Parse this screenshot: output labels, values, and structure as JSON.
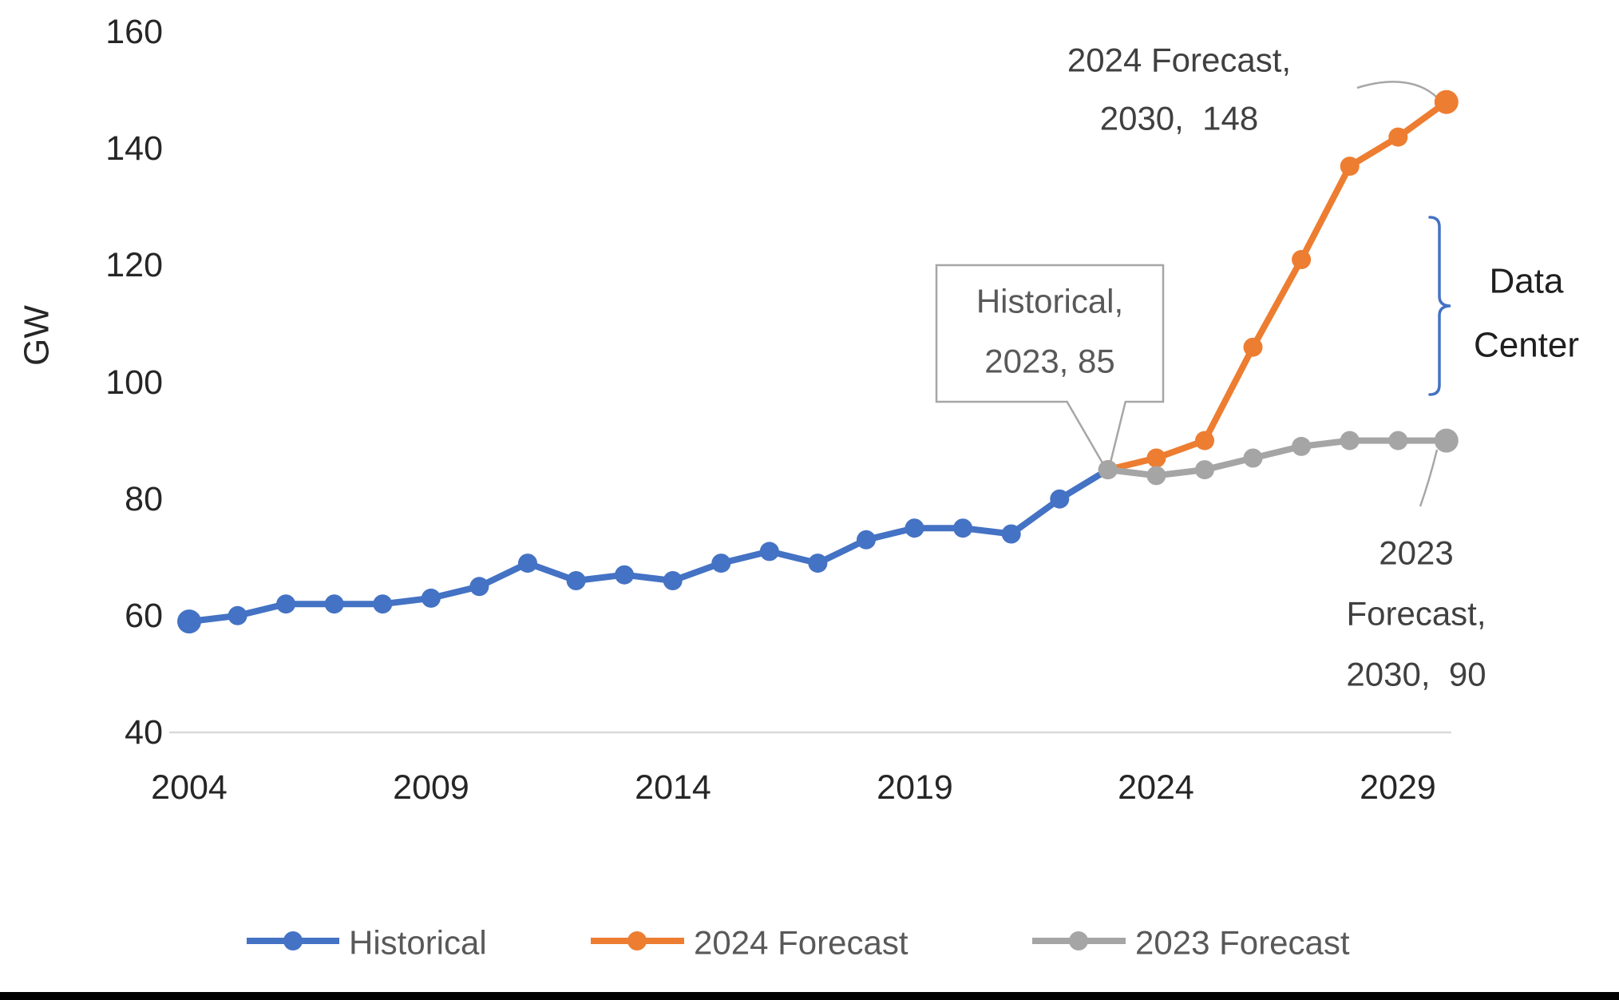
{
  "chart_data": {
    "type": "line",
    "title": "",
    "xlabel": "",
    "ylabel": "GW",
    "ylim": [
      40,
      160
    ],
    "xlim": [
      2004,
      2030
    ],
    "grid": false,
    "legend_position": "bottom",
    "y_ticks": [
      "160",
      "140",
      "120",
      "100",
      "80",
      "60",
      "40"
    ],
    "x_ticks": [
      "2004",
      "2009",
      "2014",
      "2019",
      "2024",
      "2029"
    ],
    "series": [
      {
        "name": "Historical",
        "color": "#4472C4",
        "years": [
          2004,
          2005,
          2006,
          2007,
          2008,
          2009,
          2010,
          2011,
          2012,
          2013,
          2014,
          2015,
          2016,
          2017,
          2018,
          2019,
          2020,
          2021,
          2022,
          2023
        ],
        "values": [
          59,
          60,
          62,
          62,
          62,
          63,
          65,
          69,
          66,
          67,
          66,
          69,
          71,
          69,
          73,
          75,
          75,
          74,
          80,
          85
        ]
      },
      {
        "name": "2024 Forecast",
        "color": "#ED7D31",
        "years": [
          2023,
          2024,
          2025,
          2026,
          2027,
          2028,
          2029,
          2030
        ],
        "values": [
          85,
          87,
          90,
          106,
          121,
          137,
          142,
          148
        ]
      },
      {
        "name": "2023 Forecast",
        "color": "#A5A5A5",
        "years": [
          2023,
          2024,
          2025,
          2026,
          2027,
          2028,
          2029,
          2030
        ],
        "values": [
          85,
          84,
          85,
          87,
          89,
          90,
          90,
          90
        ]
      }
    ],
    "annotations": {
      "historical_callout": {
        "line1": "Historical,",
        "line2": "2023, 85"
      },
      "forecast2024_label": {
        "line1": "2024 Forecast,",
        "line2": "2030,  148"
      },
      "forecast2023_label": {
        "line1": "2023",
        "line2": "Forecast,",
        "line3": "2030,  90"
      },
      "bracket_label": {
        "line1": "Data",
        "line2": "Center"
      }
    }
  },
  "legend": {
    "items": [
      {
        "label": "Historical",
        "color": "#4472C4"
      },
      {
        "label": "2024 Forecast",
        "color": "#ED7D31"
      },
      {
        "label": "2023 Forecast",
        "color": "#A5A5A5"
      }
    ]
  },
  "colors": {
    "historical": "#4472C4",
    "forecast_2024": "#ED7D31",
    "forecast_2023": "#A5A5A5",
    "axis_line": "#D9D9D9",
    "tick_text": "#262626",
    "annotation_text": "#404040",
    "callout_text": "#595959",
    "callout_border": "#A6A6A6",
    "leader_line": "#A6A6A6",
    "bracket": "#4472C4",
    "bracket_label_text": "#1F1F1F",
    "bottom_bar": "#000000"
  }
}
